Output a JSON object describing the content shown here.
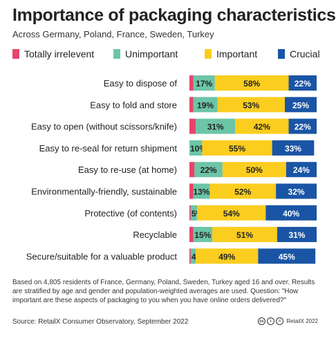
{
  "title": "Importance of packaging characteristics",
  "subtitle": "Across Germany, Poland, France, Sweden, Turkey",
  "colors": {
    "totally_irrelevant": "#e8436b",
    "unimportant": "#6cc5a7",
    "important": "#fbcd1f",
    "crucial": "#1a55a5"
  },
  "legend": [
    {
      "label": "Totally irrelevent",
      "color": "#e8436b"
    },
    {
      "label": "Unimportant",
      "color": "#6cc5a7"
    },
    {
      "label": "Important",
      "color": "#fbcd1f"
    },
    {
      "label": "Crucial",
      "color": "#1a55a5"
    }
  ],
  "chart_data": {
    "type": "bar",
    "orientation": "horizontal",
    "stacked": true,
    "categories": [
      "Easy to dispose of",
      "Easy to fold and store",
      "Easy to open (without scissors/knife)",
      "Easy to re-seal for return shipment",
      "Easy to re-use (at home)",
      "Environmentally-friendly, sustainable",
      "Protective (of contents)",
      "Recyclable",
      "Secure/suitable for a valuable product"
    ],
    "series": [
      {
        "name": "Totally irrelevent",
        "values": [
          3,
          3,
          5,
          0,
          4,
          3,
          1,
          3,
          1
        ]
      },
      {
        "name": "Unimportant",
        "values": [
          17,
          19,
          31,
          10,
          22,
          13,
          5,
          15,
          4
        ]
      },
      {
        "name": "Important",
        "values": [
          58,
          53,
          42,
          55,
          50,
          52,
          54,
          51,
          49
        ]
      },
      {
        "name": "Crucial",
        "values": [
          22,
          25,
          22,
          33,
          24,
          32,
          40,
          31,
          45
        ]
      }
    ],
    "data_labels": [
      [
        "",
        "17%",
        "58%",
        "22%"
      ],
      [
        "",
        "19%",
        "53%",
        "25%"
      ],
      [
        "",
        "31%",
        "42%",
        "22%"
      ],
      [
        "",
        "10%",
        "55%",
        "33%"
      ],
      [
        "",
        "22%",
        "50%",
        "24%"
      ],
      [
        "",
        "13%",
        "52%",
        "32%"
      ],
      [
        "",
        "5%",
        "54%",
        "40%"
      ],
      [
        "",
        "15%",
        "51%",
        "31%"
      ],
      [
        "",
        "4%",
        "49%",
        "45%"
      ]
    ],
    "xlim": [
      0,
      100
    ],
    "legend_position": "top",
    "grid": false
  },
  "footnote": "Based on 4,805 residents of France, Germany, Poland, Sweden, Turkey aged 16 and over. Results are stratified by age and gender and population-weighted averages are used. Question: \"How important are these aspects of packaging to you when you have online orders delivered?\"",
  "source": "Source: RetailX Consumer Observatory, September 2022",
  "credit": "RetailX 2022"
}
